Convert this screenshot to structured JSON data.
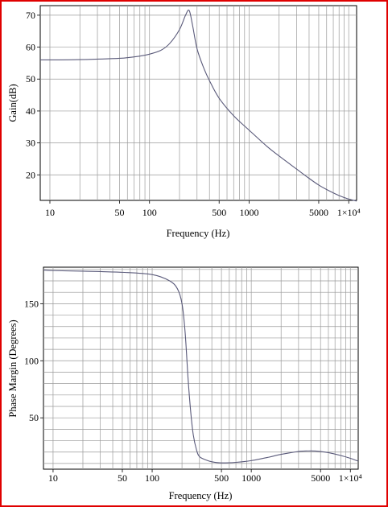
{
  "frame": {
    "border_color": "#e00000"
  },
  "chart_data": [
    {
      "type": "line",
      "title": "",
      "xlabel": "Frequency (Hz)",
      "ylabel": "Gain(dB)",
      "xscale": "log",
      "xlim": [
        8,
        12000
      ],
      "ylim": [
        12,
        73
      ],
      "grid": true,
      "line_color": "#5a5a7a",
      "x_tick_labels": [
        "10",
        "50",
        "100",
        "500",
        "1000",
        "5000",
        "1×10⁴"
      ],
      "x_tick_values": [
        10,
        50,
        100,
        500,
        1000,
        5000,
        10000
      ],
      "y_tick_values": [
        20,
        30,
        40,
        50,
        60,
        70
      ],
      "series": [
        {
          "x": [
            8,
            10,
            20,
            50,
            80,
            100,
            130,
            160,
            200,
            230,
            250,
            270,
            300,
            350,
            400,
            500,
            700,
            1000,
            1500,
            2000,
            3000,
            4000,
            5000,
            6000,
            8000,
            10000,
            12000
          ],
          "y": [
            56,
            56,
            56.1,
            56.5,
            57.2,
            57.8,
            59,
            61.2,
            65.5,
            70,
            71.5,
            67,
            59.5,
            53.5,
            49.5,
            44,
            38.5,
            34,
            29,
            25.9,
            21.8,
            18.9,
            16.8,
            15.4,
            13.5,
            12.4,
            11.8
          ]
        }
      ]
    },
    {
      "type": "line",
      "title": "",
      "xlabel": "Frequency (Hz)",
      "ylabel": "Phase Margin (Degrees)",
      "xscale": "log",
      "xlim": [
        8,
        12000
      ],
      "ylim": [
        5,
        182
      ],
      "grid": true,
      "line_color": "#5a5a7a",
      "x_tick_labels": [
        "10",
        "50",
        "100",
        "500",
        "1000",
        "5000",
        "1×10⁴"
      ],
      "x_tick_values": [
        10,
        50,
        100,
        500,
        1000,
        5000,
        10000
      ],
      "y_tick_values": [
        50,
        100,
        150
      ],
      "series": [
        {
          "x": [
            8,
            10,
            20,
            50,
            100,
            150,
            180,
            200,
            215,
            230,
            245,
            260,
            280,
            300,
            350,
            400,
            500,
            700,
            1000,
            1500,
            2000,
            3000,
            4000,
            5000,
            6000,
            8000,
            10000,
            12000
          ],
          "y": [
            179.5,
            179,
            178.5,
            177.5,
            175.5,
            170,
            163,
            150,
            125,
            85,
            55,
            35,
            22,
            16,
            13,
            11.5,
            10.5,
            11,
            12.5,
            15.5,
            18,
            20.5,
            21,
            20.5,
            19.5,
            17,
            14.5,
            12
          ]
        }
      ]
    }
  ]
}
